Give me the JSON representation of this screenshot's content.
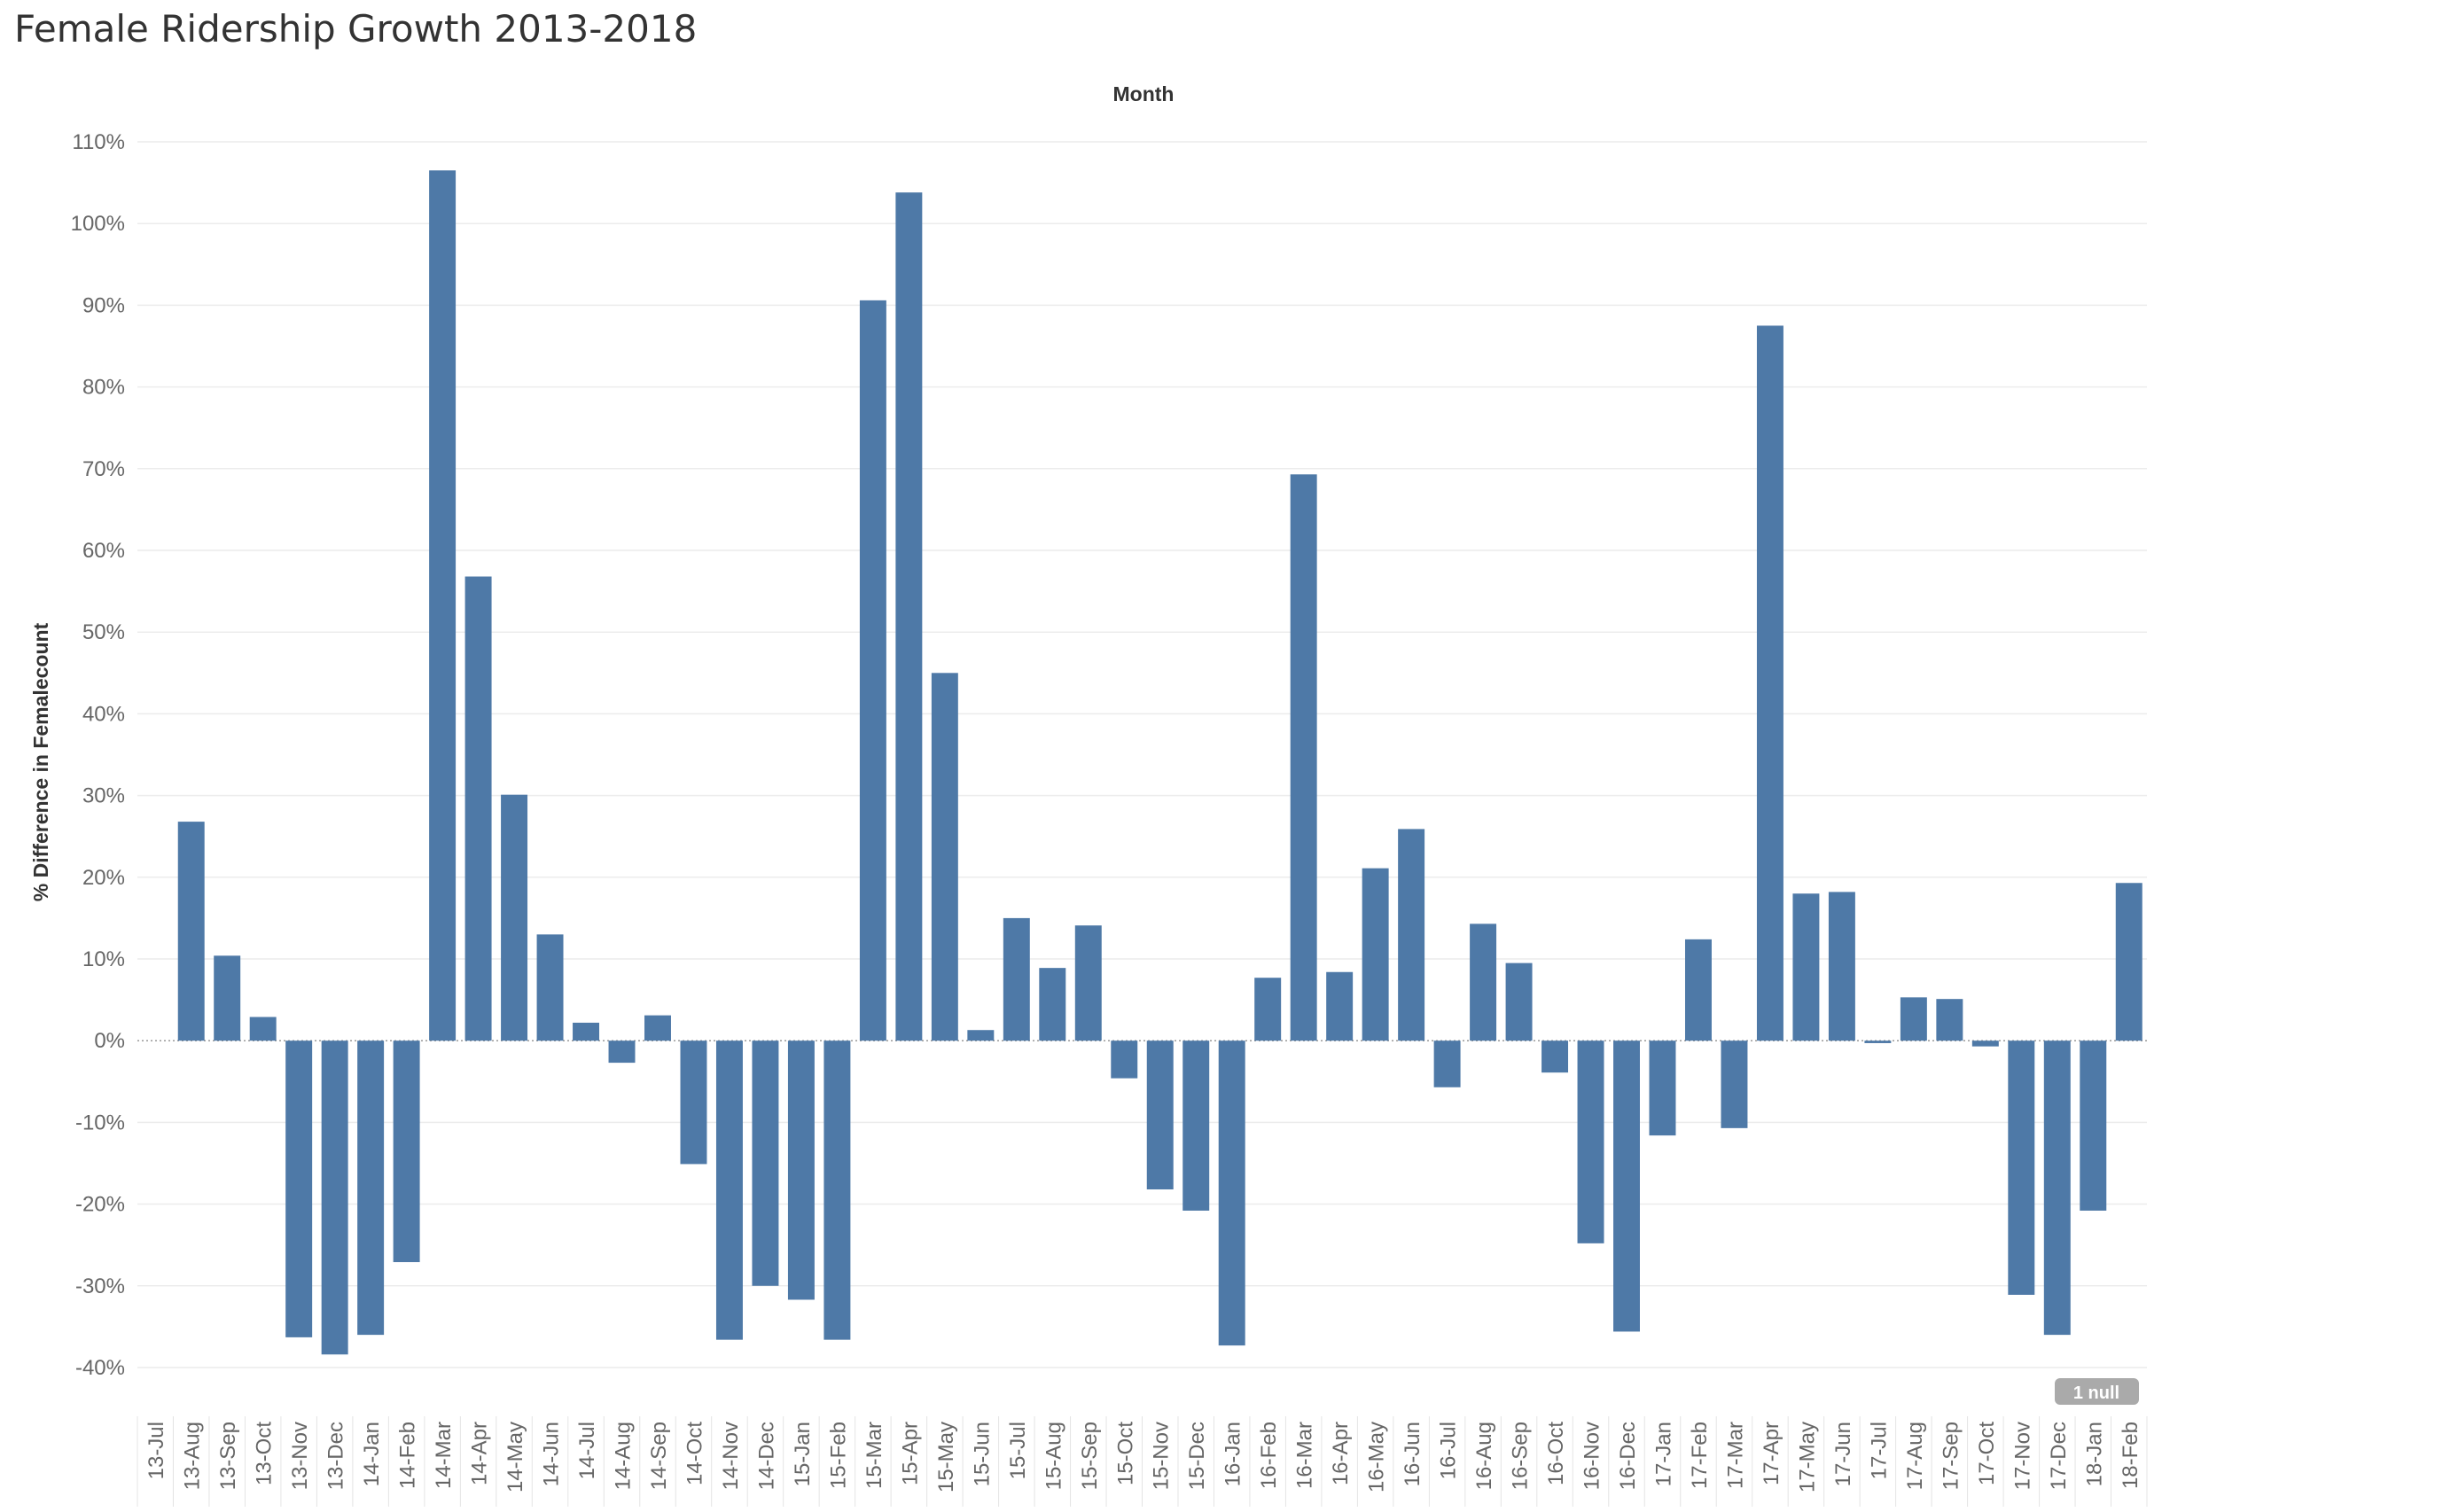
{
  "title": "Female Ridership Growth 2013-2018",
  "chart_data": {
    "type": "bar",
    "title": "Female Ridership Growth 2013-2018",
    "xlabel": "Month",
    "ylabel": "% Difference in Femalecount",
    "ylim": [
      -45,
      110
    ],
    "y_ticks": [
      110,
      100,
      90,
      80,
      70,
      60,
      50,
      40,
      30,
      20,
      10,
      0,
      -10,
      -20,
      -30,
      -40
    ],
    "y_tick_format": "percent",
    "grid": true,
    "bar_color": "#4e79a7",
    "categories": [
      "13-Jul",
      "13-Aug",
      "13-Sep",
      "13-Oct",
      "13-Nov",
      "13-Dec",
      "14-Jan",
      "14-Feb",
      "14-Mar",
      "14-Apr",
      "14-May",
      "14-Jun",
      "14-Jul",
      "14-Aug",
      "14-Sep",
      "14-Oct",
      "14-Nov",
      "14-Dec",
      "15-Jan",
      "15-Feb",
      "15-Mar",
      "15-Apr",
      "15-May",
      "15-Jun",
      "15-Jul",
      "15-Aug",
      "15-Sep",
      "15-Oct",
      "15-Nov",
      "15-Dec",
      "16-Jan",
      "16-Feb",
      "16-Mar",
      "16-Apr",
      "16-May",
      "16-Jun",
      "16-Jul",
      "16-Aug",
      "16-Sep",
      "16-Oct",
      "16-Nov",
      "16-Dec",
      "17-Jan",
      "17-Feb",
      "17-Mar",
      "17-Apr",
      "17-May",
      "17-Jun",
      "17-Jul",
      "17-Aug",
      "17-Sep",
      "17-Oct",
      "17-Nov",
      "17-Dec",
      "18-Jan",
      "18-Feb"
    ],
    "values": [
      null,
      26.8,
      10.4,
      2.9,
      -36.3,
      -38.4,
      -36.0,
      -27.1,
      106.5,
      56.8,
      30.1,
      13.0,
      2.2,
      -2.7,
      3.1,
      -15.1,
      -36.6,
      -30.0,
      -31.7,
      -36.6,
      90.6,
      103.8,
      45.0,
      1.3,
      15.0,
      8.9,
      14.1,
      -4.6,
      -18.2,
      -20.8,
      -37.3,
      7.7,
      69.3,
      8.4,
      21.1,
      25.9,
      -5.7,
      14.3,
      9.5,
      -3.9,
      -24.8,
      -35.6,
      -11.6,
      12.4,
      -10.7,
      87.5,
      18.0,
      18.2,
      -0.3,
      5.3,
      5.1,
      -0.7,
      -31.1,
      -36.0,
      -20.8,
      19.3
    ],
    "null_indicator": "1 null"
  }
}
